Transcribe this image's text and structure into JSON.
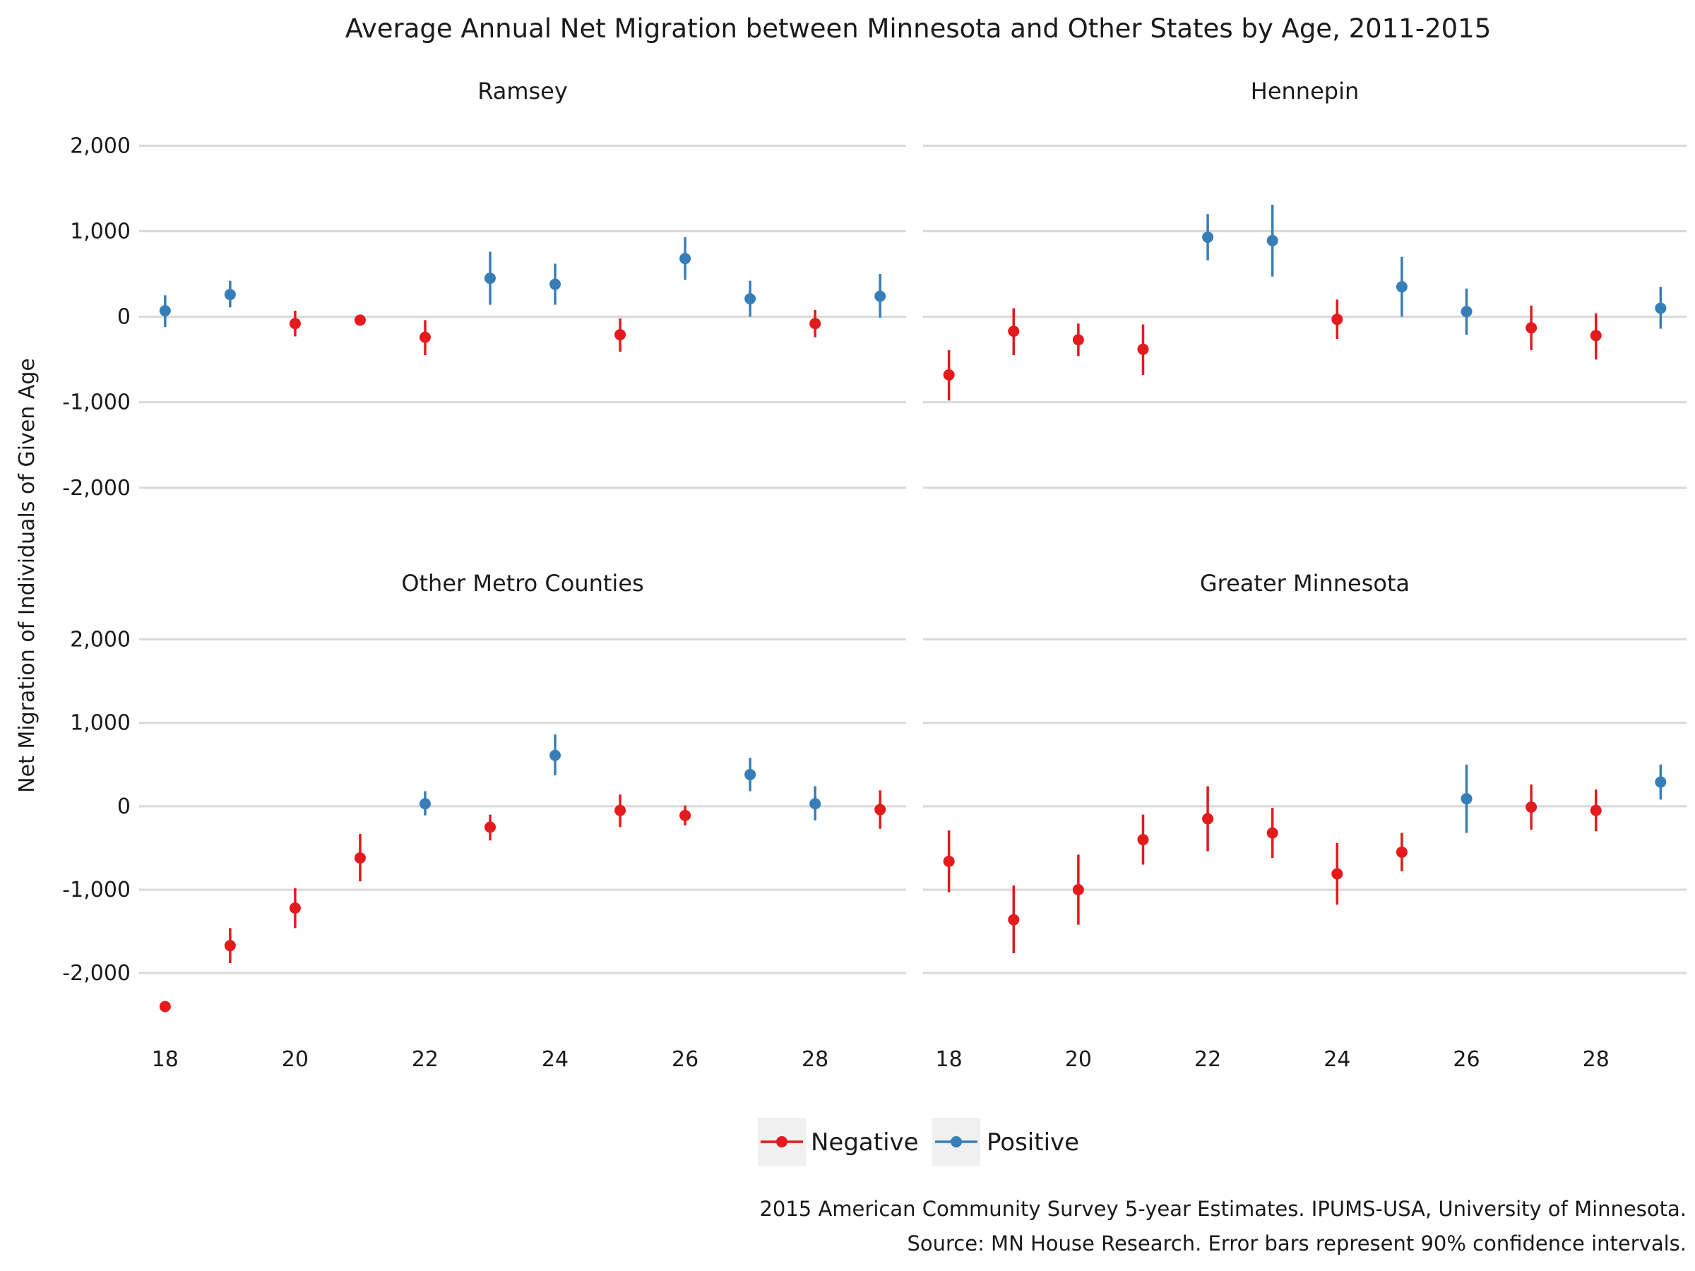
{
  "chart_data": {
    "type": "scatter",
    "title": "Average Annual Net Migration between Minnesota and Other States by Age, 2011-2015",
    "ylabel": "Net Migration of Individuals of Given Age",
    "xlabel": "",
    "x_ticks": [
      18,
      20,
      22,
      24,
      26,
      28
    ],
    "y_ticks": [
      2000,
      1000,
      0,
      -1000,
      -2000
    ],
    "y_tick_labels": [
      "2,000",
      "1,000",
      "0",
      "-1,000",
      "-2,000"
    ],
    "xlim": [
      17.6,
      29.4
    ],
    "ylim_top_panels": [
      -2200,
      2300
    ],
    "ylim_bottom_panels": [
      -2650,
      2300
    ],
    "grid": true,
    "legend": {
      "placement": "bottom",
      "entries": [
        {
          "key": "negative",
          "label": "Negative",
          "color": "#e41a1c"
        },
        {
          "key": "positive",
          "label": "Positive",
          "color": "#377eb8"
        }
      ]
    },
    "panels": [
      {
        "name": "Ramsey",
        "points": [
          {
            "x": 18,
            "y": 70,
            "lo": -120,
            "hi": 250,
            "sign": "positive"
          },
          {
            "x": 19,
            "y": 260,
            "lo": 110,
            "hi": 420,
            "sign": "positive"
          },
          {
            "x": 20,
            "y": -80,
            "lo": -230,
            "hi": 70,
            "sign": "negative"
          },
          {
            "x": 21,
            "y": -40,
            "lo": -100,
            "hi": 20,
            "sign": "negative"
          },
          {
            "x": 22,
            "y": -240,
            "lo": -450,
            "hi": -40,
            "sign": "negative"
          },
          {
            "x": 23,
            "y": 450,
            "lo": 140,
            "hi": 760,
            "sign": "positive"
          },
          {
            "x": 24,
            "y": 380,
            "lo": 140,
            "hi": 620,
            "sign": "positive"
          },
          {
            "x": 25,
            "y": -210,
            "lo": -410,
            "hi": -20,
            "sign": "negative"
          },
          {
            "x": 26,
            "y": 680,
            "lo": 430,
            "hi": 930,
            "sign": "positive"
          },
          {
            "x": 27,
            "y": 210,
            "lo": 0,
            "hi": 420,
            "sign": "positive"
          },
          {
            "x": 28,
            "y": -80,
            "lo": -240,
            "hi": 80,
            "sign": "negative"
          },
          {
            "x": 29,
            "y": 240,
            "lo": -10,
            "hi": 500,
            "sign": "positive"
          }
        ]
      },
      {
        "name": "Hennepin",
        "points": [
          {
            "x": 18,
            "y": -680,
            "lo": -980,
            "hi": -390,
            "sign": "negative"
          },
          {
            "x": 19,
            "y": -170,
            "lo": -450,
            "hi": 100,
            "sign": "negative"
          },
          {
            "x": 20,
            "y": -270,
            "lo": -460,
            "hi": -80,
            "sign": "negative"
          },
          {
            "x": 21,
            "y": -380,
            "lo": -680,
            "hi": -90,
            "sign": "negative"
          },
          {
            "x": 22,
            "y": 930,
            "lo": 660,
            "hi": 1200,
            "sign": "positive"
          },
          {
            "x": 23,
            "y": 890,
            "lo": 470,
            "hi": 1310,
            "sign": "positive"
          },
          {
            "x": 24,
            "y": -30,
            "lo": -260,
            "hi": 200,
            "sign": "negative"
          },
          {
            "x": 25,
            "y": 350,
            "lo": 0,
            "hi": 700,
            "sign": "positive"
          },
          {
            "x": 26,
            "y": 60,
            "lo": -210,
            "hi": 330,
            "sign": "positive"
          },
          {
            "x": 27,
            "y": -130,
            "lo": -390,
            "hi": 130,
            "sign": "negative"
          },
          {
            "x": 28,
            "y": -220,
            "lo": -500,
            "hi": 40,
            "sign": "negative"
          },
          {
            "x": 29,
            "y": 100,
            "lo": -140,
            "hi": 350,
            "sign": "positive"
          }
        ]
      },
      {
        "name": "Other Metro Counties",
        "points": [
          {
            "x": 18,
            "y": -2400,
            "lo": -2430,
            "hi": -2370,
            "sign": "negative"
          },
          {
            "x": 19,
            "y": -1670,
            "lo": -1880,
            "hi": -1460,
            "sign": "negative"
          },
          {
            "x": 20,
            "y": -1220,
            "lo": -1460,
            "hi": -980,
            "sign": "negative"
          },
          {
            "x": 21,
            "y": -620,
            "lo": -900,
            "hi": -330,
            "sign": "negative"
          },
          {
            "x": 22,
            "y": 30,
            "lo": -110,
            "hi": 180,
            "sign": "positive"
          },
          {
            "x": 23,
            "y": -250,
            "lo": -410,
            "hi": -100,
            "sign": "negative"
          },
          {
            "x": 24,
            "y": 610,
            "lo": 370,
            "hi": 860,
            "sign": "positive"
          },
          {
            "x": 25,
            "y": -50,
            "lo": -250,
            "hi": 140,
            "sign": "negative"
          },
          {
            "x": 26,
            "y": -110,
            "lo": -230,
            "hi": 10,
            "sign": "negative"
          },
          {
            "x": 27,
            "y": 380,
            "lo": 180,
            "hi": 580,
            "sign": "positive"
          },
          {
            "x": 28,
            "y": 30,
            "lo": -170,
            "hi": 240,
            "sign": "positive"
          },
          {
            "x": 29,
            "y": -40,
            "lo": -270,
            "hi": 190,
            "sign": "negative"
          }
        ]
      },
      {
        "name": "Greater Minnesota",
        "points": [
          {
            "x": 18,
            "y": -660,
            "lo": -1030,
            "hi": -290,
            "sign": "negative"
          },
          {
            "x": 19,
            "y": -1360,
            "lo": -1760,
            "hi": -950,
            "sign": "negative"
          },
          {
            "x": 20,
            "y": -1000,
            "lo": -1420,
            "hi": -580,
            "sign": "negative"
          },
          {
            "x": 21,
            "y": -400,
            "lo": -700,
            "hi": -100,
            "sign": "negative"
          },
          {
            "x": 22,
            "y": -150,
            "lo": -540,
            "hi": 240,
            "sign": "negative"
          },
          {
            "x": 23,
            "y": -320,
            "lo": -620,
            "hi": -20,
            "sign": "negative"
          },
          {
            "x": 24,
            "y": -810,
            "lo": -1180,
            "hi": -440,
            "sign": "negative"
          },
          {
            "x": 25,
            "y": -550,
            "lo": -780,
            "hi": -320,
            "sign": "negative"
          },
          {
            "x": 26,
            "y": 90,
            "lo": -320,
            "hi": 500,
            "sign": "positive"
          },
          {
            "x": 27,
            "y": -10,
            "lo": -280,
            "hi": 260,
            "sign": "negative"
          },
          {
            "x": 28,
            "y": -50,
            "lo": -300,
            "hi": 200,
            "sign": "negative"
          },
          {
            "x": 29,
            "y": 290,
            "lo": 80,
            "hi": 500,
            "sign": "positive"
          }
        ]
      }
    ],
    "caption_lines": [
      "2015 American Community Survey 5-year Estimates. IPUMS-USA, University of Minnesota.",
      "Source: MN House Research. Error bars represent 90% confidence intervals."
    ]
  }
}
